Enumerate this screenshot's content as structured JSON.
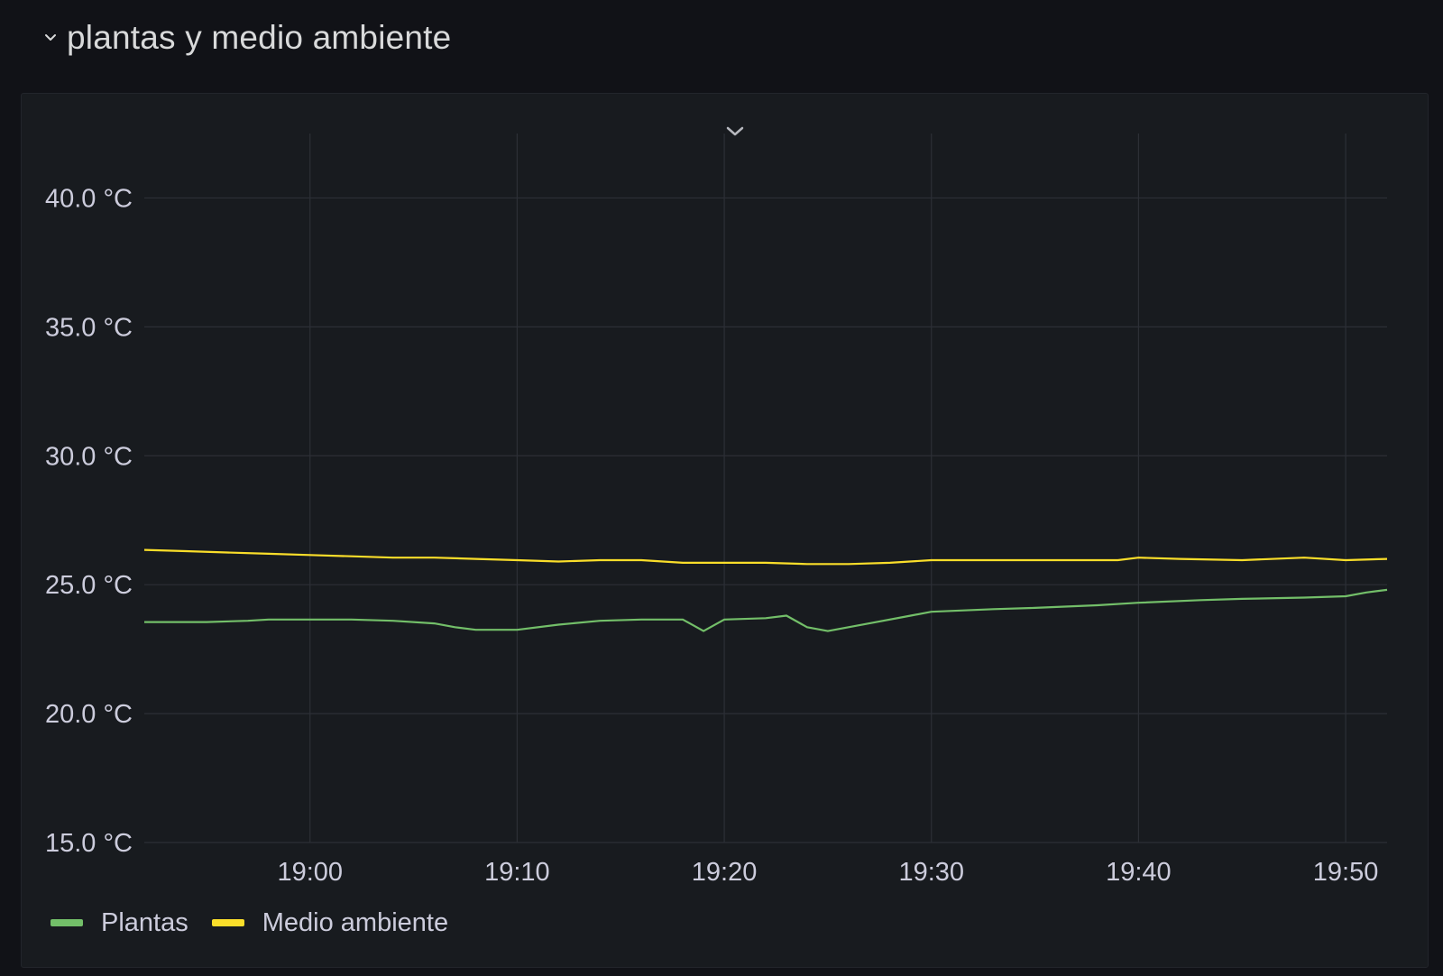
{
  "row": {
    "title": "plantas y medio ambiente",
    "chevron_icon": "chevron-down-icon"
  },
  "panel": {
    "menu_icon": "chevron-down-icon"
  },
  "colors": {
    "background": "#111217",
    "panel": "#181b1f",
    "grid": "#2c2f36",
    "plantas": "#73bf69",
    "medio_ambiente": "#fade2a"
  },
  "chart_data": {
    "type": "line",
    "title": "",
    "xlabel": "",
    "ylabel": "",
    "y_unit": "°C",
    "ylim": [
      15,
      42.5
    ],
    "yticks": [
      15,
      20,
      25,
      30,
      35,
      40
    ],
    "ytick_labels": [
      "15.0 °C",
      "20.0 °C",
      "25.0 °C",
      "30.0 °C",
      "35.0 °C",
      "40.0 °C"
    ],
    "xlim": [
      "18:52",
      "19:52"
    ],
    "xticks": [
      "19:00",
      "19:10",
      "19:20",
      "19:30",
      "19:40",
      "19:50"
    ],
    "grid": true,
    "legend_placement": "bottom-left",
    "series": [
      {
        "name": "Plantas",
        "color": "#73bf69",
        "x": [
          "18:52",
          "18:55",
          "18:57",
          "18:58",
          "19:00",
          "19:02",
          "19:04",
          "19:06",
          "19:07",
          "19:08",
          "19:10",
          "19:12",
          "19:14",
          "19:16",
          "19:18",
          "19:19",
          "19:20",
          "19:22",
          "19:23",
          "19:24",
          "19:25",
          "19:27",
          "19:29",
          "19:30",
          "19:33",
          "19:35",
          "19:38",
          "19:40",
          "19:43",
          "19:45",
          "19:48",
          "19:50",
          "19:51",
          "19:52"
        ],
        "values": [
          23.55,
          23.55,
          23.6,
          23.65,
          23.65,
          23.65,
          23.6,
          23.5,
          23.35,
          23.25,
          23.25,
          23.45,
          23.6,
          23.65,
          23.65,
          23.2,
          23.65,
          23.7,
          23.8,
          23.35,
          23.2,
          23.5,
          23.8,
          23.95,
          24.05,
          24.1,
          24.2,
          24.3,
          24.4,
          24.45,
          24.5,
          24.55,
          24.7,
          24.8
        ]
      },
      {
        "name": "Medio ambiente",
        "color": "#fade2a",
        "x": [
          "18:52",
          "18:54",
          "18:56",
          "18:58",
          "19:00",
          "19:02",
          "19:04",
          "19:06",
          "19:08",
          "19:10",
          "19:12",
          "19:14",
          "19:16",
          "19:18",
          "19:20",
          "19:22",
          "19:24",
          "19:26",
          "19:28",
          "19:30",
          "19:33",
          "19:36",
          "19:39",
          "19:40",
          "19:42",
          "19:45",
          "19:48",
          "19:50",
          "19:52"
        ],
        "values": [
          26.35,
          26.3,
          26.25,
          26.2,
          26.15,
          26.1,
          26.05,
          26.05,
          26.0,
          25.95,
          25.9,
          25.95,
          25.95,
          25.85,
          25.85,
          25.85,
          25.8,
          25.8,
          25.85,
          25.95,
          25.95,
          25.95,
          25.95,
          26.05,
          26.0,
          25.95,
          26.05,
          25.95,
          26.0
        ]
      }
    ]
  }
}
